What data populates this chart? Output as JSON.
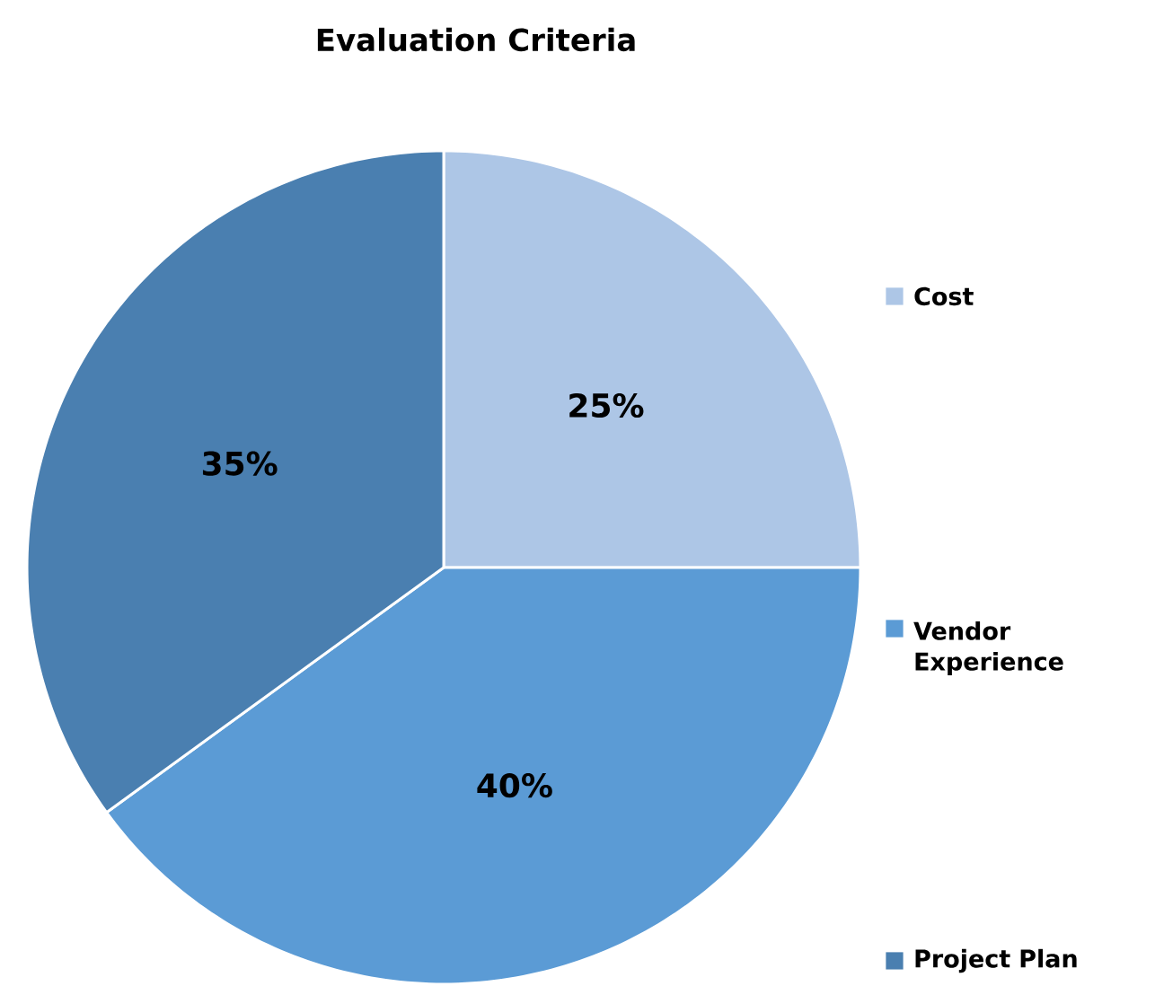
{
  "chart_data": {
    "type": "pie",
    "title": "Evaluation Criteria",
    "categories": [
      "Cost",
      "Vendor Experience",
      "Project Plan"
    ],
    "values": [
      25,
      40,
      35
    ],
    "value_labels": [
      "25%",
      "40%",
      "35%"
    ],
    "colors": [
      "#adc6e6",
      "#5b9bd5",
      "#4a7fb0"
    ],
    "legend": "right"
  }
}
